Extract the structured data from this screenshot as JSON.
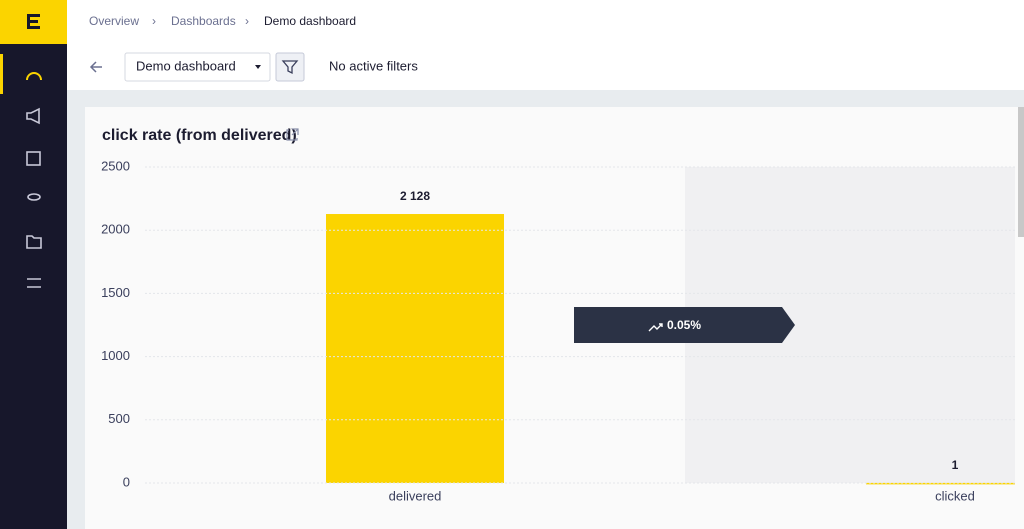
{
  "breadcrumbs": [
    "Overview",
    "Dashboards",
    "Demo dashboard"
  ],
  "toolbar": {
    "dashboard_select": "Demo dashboard",
    "filters": "No active filters"
  },
  "chart_data": {
    "type": "bar",
    "title": "click rate (from delivered)",
    "categories": [
      "delivered",
      "clicked"
    ],
    "values": [
      2128,
      1
    ],
    "value_labels": [
      "2 128",
      "1"
    ],
    "color": "#fbd400",
    "ylim": [
      0,
      2500
    ],
    "yticks": [
      0,
      500,
      1000,
      1500,
      2000,
      2500
    ],
    "grid": true,
    "annotation": "0.05%"
  }
}
